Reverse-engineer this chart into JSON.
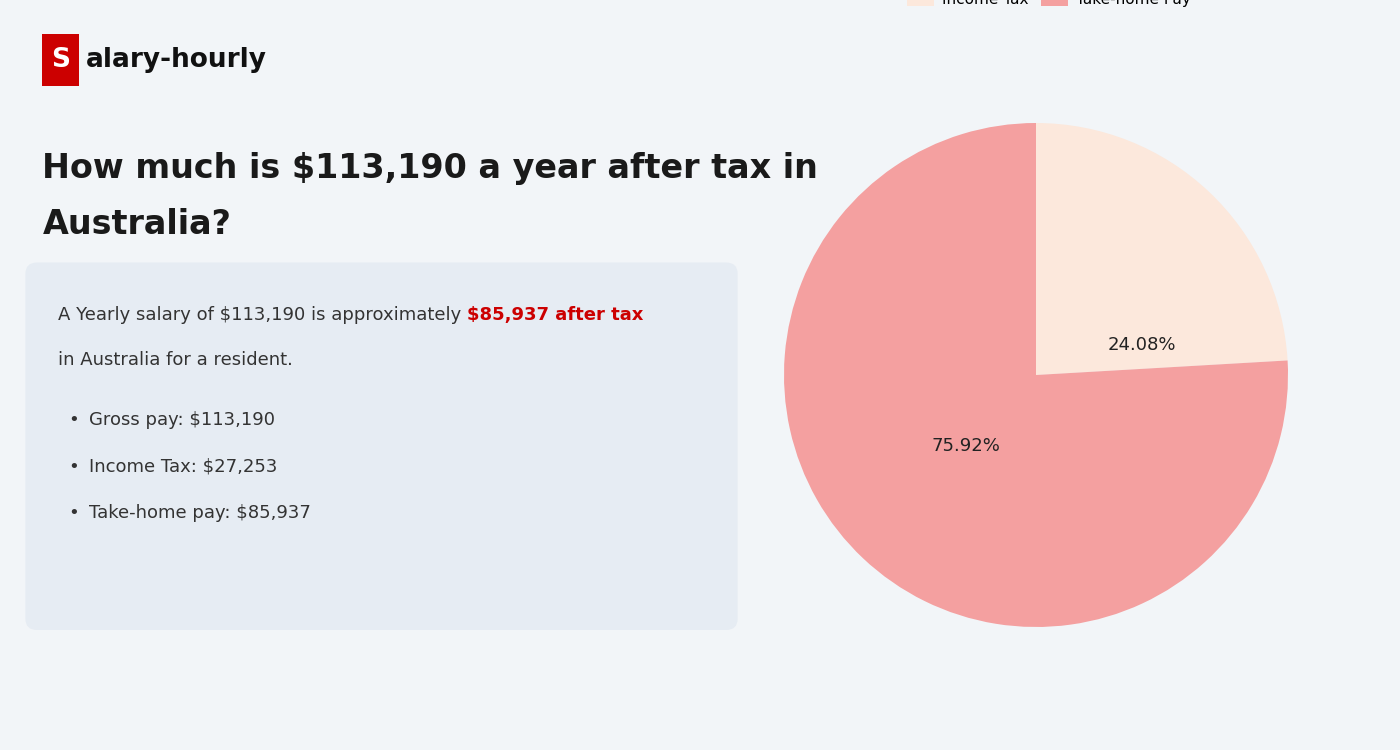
{
  "bg_color": "#f2f5f8",
  "logo_s_bg": "#cc0000",
  "title_line1": "How much is $113,190 a year after tax in",
  "title_line2": "Australia?",
  "title_color": "#1a1a1a",
  "box_bg": "#e6ecf3",
  "box_text_normal": "A Yearly salary of $113,190 is approximately ",
  "box_text_highlight": "$85,937 after tax",
  "box_text_end": "in Australia for a resident.",
  "highlight_color": "#cc0000",
  "bullet_items": [
    "Gross pay: $113,190",
    "Income Tax: $27,253",
    "Take-home pay: $85,937"
  ],
  "bullet_color": "#333333",
  "pie_values": [
    24.08,
    75.92
  ],
  "pie_labels": [
    "Income Tax",
    "Take-home Pay"
  ],
  "pie_colors": [
    "#fce8dc",
    "#f4a0a0"
  ],
  "pie_text_color": "#222222",
  "legend_fontsize": 11,
  "pct_fontsize": 13
}
